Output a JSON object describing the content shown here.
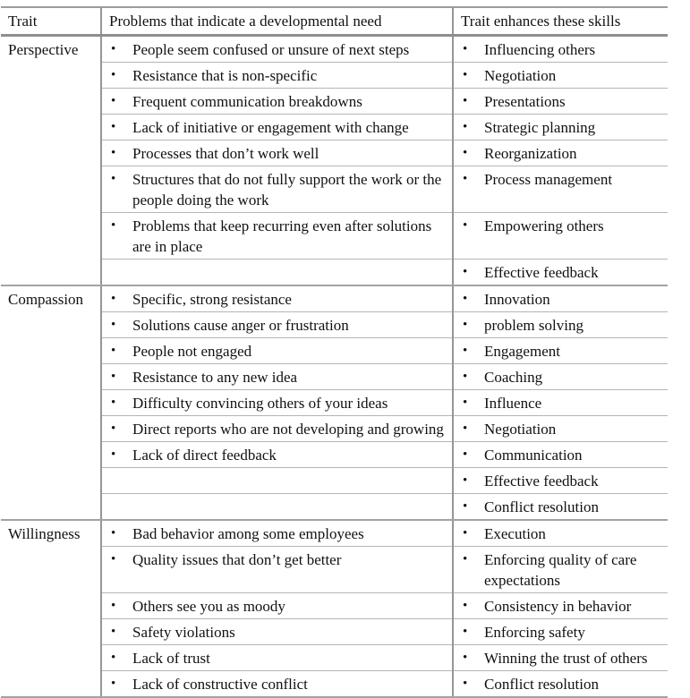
{
  "table": {
    "headers": {
      "trait": "Trait",
      "problems": "Problems that indicate a developmental need",
      "skills": "Trait enhances these skills"
    },
    "sections": [
      {
        "trait": "Perspective",
        "rows": [
          {
            "problem": "People seem confused or unsure of next steps",
            "skill": "Influencing others"
          },
          {
            "problem": "Resistance that is non-specific",
            "skill": "Negotiation"
          },
          {
            "problem": "Frequent communication breakdowns",
            "skill": "Presentations"
          },
          {
            "problem": "Lack of initiative or engagement with change",
            "skill": "Strategic planning"
          },
          {
            "problem": "Processes that don’t work well",
            "skill": "Reorganization"
          },
          {
            "problem": "Structures that do not fully support the work or the people doing the work",
            "skill": "Process management"
          },
          {
            "problem": "Problems that keep recurring even after solutions are in place",
            "skill": "Empowering others"
          },
          {
            "problem": "",
            "skill": "Effective feedback"
          }
        ]
      },
      {
        "trait": "Compassion",
        "rows": [
          {
            "problem": "Specific, strong resistance",
            "skill": "Innovation"
          },
          {
            "problem": "Solutions cause anger or frustration",
            "skill": "problem solving"
          },
          {
            "problem": "People not engaged",
            "skill": "Engagement"
          },
          {
            "problem": "Resistance to any new idea",
            "skill": "Coaching"
          },
          {
            "problem": "Difficulty convincing others of your ideas",
            "skill": "Influence"
          },
          {
            "problem": "Direct reports who are not developing and growing",
            "skill": "Negotiation"
          },
          {
            "problem": "Lack of direct feedback",
            "skill": "Communication"
          },
          {
            "problem": "",
            "skill": "Effective feedback"
          },
          {
            "problem": "",
            "skill": "Conflict resolution"
          }
        ]
      },
      {
        "trait": "Willingness",
        "rows": [
          {
            "problem": "Bad behavior among some employees",
            "skill": "Execution"
          },
          {
            "problem": "Quality issues that don’t get better",
            "skill": "Enforcing quality of care expectations"
          },
          {
            "problem": "Others see you as moody",
            "skill": "Consistency in behavior"
          },
          {
            "problem": "Safety violations",
            "skill": "Enforcing safety"
          },
          {
            "problem": "Lack of trust",
            "skill": "Winning the trust of others"
          },
          {
            "problem": "Lack of constructive conflict",
            "skill": "Conflict resolution"
          }
        ]
      }
    ],
    "bullet_glyph": "•"
  }
}
